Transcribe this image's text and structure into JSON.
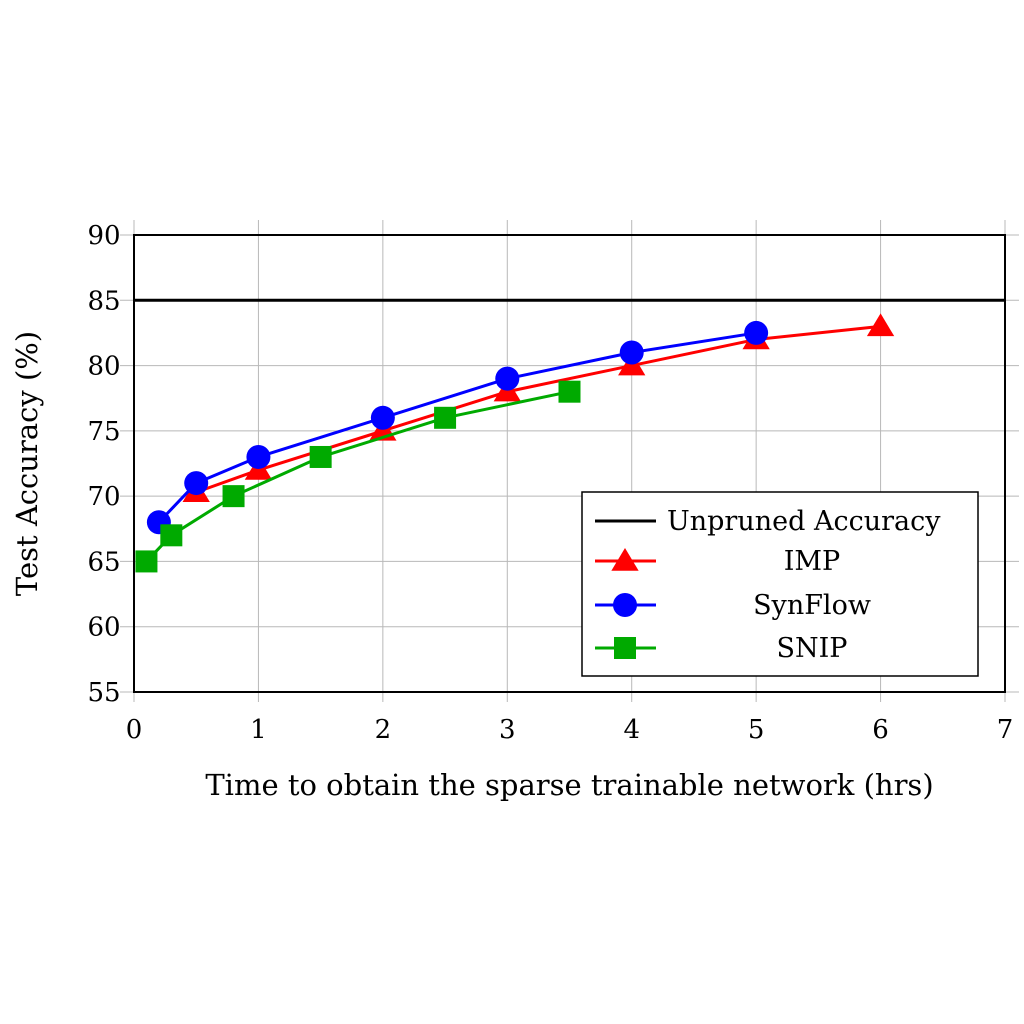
{
  "chart_data": {
    "type": "line",
    "title": "",
    "xlabel": "Time to obtain the sparse trainable network (hrs)",
    "ylabel": "Test Accuracy (%)",
    "xlim": [
      0,
      7
    ],
    "ylim": [
      55,
      90
    ],
    "x_ticks": [
      "0",
      "1",
      "2",
      "3",
      "4",
      "5",
      "6",
      "7"
    ],
    "y_ticks": [
      "55",
      "60",
      "65",
      "70",
      "75",
      "80",
      "85",
      "90"
    ],
    "grid": true,
    "legend_position": "bottom-right",
    "reference_line": {
      "name": "Unpruned Accuracy",
      "y": 85,
      "color": "#000000"
    },
    "series": [
      {
        "name": "IMP",
        "color": "#ff0000",
        "marker": "triangle",
        "x": [
          0.5,
          1,
          2,
          3,
          4,
          5,
          6
        ],
        "values": [
          70.3,
          72,
          75,
          78,
          80,
          82,
          83
        ]
      },
      {
        "name": "SynFlow",
        "color": "#0000ff",
        "marker": "circle",
        "x": [
          0.2,
          0.5,
          1,
          2,
          3,
          4,
          5
        ],
        "values": [
          68,
          71,
          73,
          76,
          79,
          81,
          82.5
        ]
      },
      {
        "name": "SNIP",
        "color": "#00aa00",
        "marker": "square",
        "x": [
          0.1,
          0.3,
          0.8,
          1.5,
          2.5,
          3.5
        ],
        "values": [
          65,
          67,
          70,
          73,
          76,
          78
        ]
      }
    ]
  }
}
